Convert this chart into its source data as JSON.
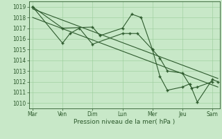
{
  "bg_color": "#c8e8c8",
  "grid_color": "#99cc99",
  "line_color": "#2d5a2d",
  "marker_color": "#2d5a2d",
  "text_color": "#2d5a2d",
  "xlabel": "Pression niveau de la mer( hPa )",
  "ylim": [
    1009.5,
    1019.5
  ],
  "yticks": [
    1010,
    1011,
    1012,
    1013,
    1014,
    1015,
    1016,
    1017,
    1018,
    1019
  ],
  "day_labels": [
    "Mar",
    "Ven",
    "Dim",
    "Lun",
    "Mer",
    "Jeu",
    "Sam"
  ],
  "day_positions": [
    0,
    16,
    32,
    48,
    64,
    80,
    96
  ],
  "xlim": [
    -2,
    100
  ],
  "series1_x": [
    0,
    16,
    32,
    36,
    48,
    53,
    58,
    64,
    68,
    72,
    80,
    85,
    88,
    96
  ],
  "series1_y": [
    1019.0,
    1017.0,
    1017.1,
    1016.3,
    1017.0,
    1018.3,
    1018.0,
    1015.0,
    1014.2,
    1013.0,
    1012.8,
    1011.4,
    1011.5,
    1012.0
  ],
  "series2_x": [
    0,
    16,
    20,
    25,
    32,
    48,
    52,
    56,
    64,
    68,
    72,
    80,
    84,
    88,
    96,
    99
  ],
  "series2_y": [
    1019.0,
    1015.6,
    1016.5,
    1017.0,
    1015.5,
    1016.5,
    1016.5,
    1016.5,
    1015.0,
    1012.5,
    1011.2,
    1011.5,
    1011.8,
    1010.1,
    1012.2,
    1012.0
  ],
  "trend1_x": [
    0,
    99
  ],
  "trend1_y": [
    1018.8,
    1012.3
  ],
  "trend2_x": [
    0,
    99
  ],
  "trend2_y": [
    1018.0,
    1011.5
  ]
}
